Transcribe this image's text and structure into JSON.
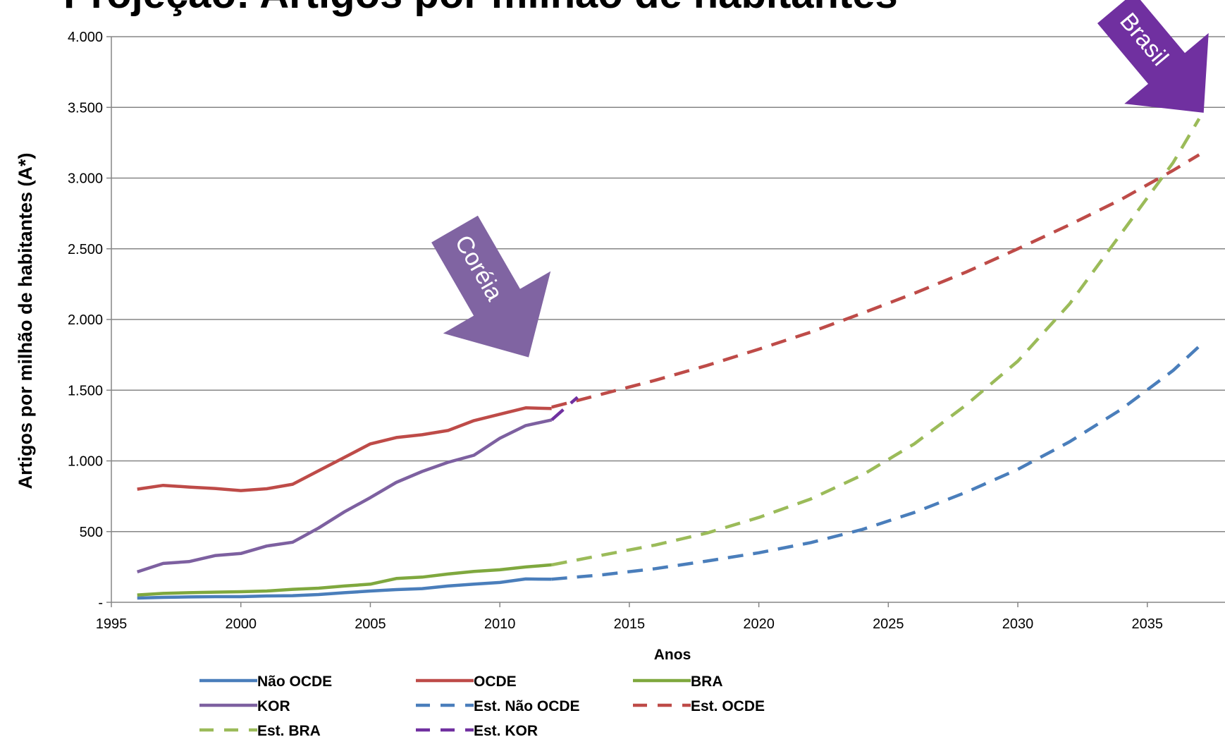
{
  "chart_data": {
    "type": "line",
    "title": "Projeção: Artigos por milhão de habitantes",
    "xlabel": "Anos",
    "ylabel": "Artigos por milhão de habitantes (A*)",
    "xlim": [
      1995,
      2038
    ],
    "ylim": [
      0,
      4000
    ],
    "x_ticks": [
      1995,
      2000,
      2005,
      2010,
      2015,
      2020,
      2025,
      2030,
      2035
    ],
    "x_tick_labels": [
      "1995",
      "2000",
      "2005",
      "2010",
      "2015",
      "2020",
      "2025",
      "2030",
      "2035"
    ],
    "y_ticks": [
      0,
      500,
      1000,
      1500,
      2000,
      2500,
      3000,
      3500,
      4000
    ],
    "y_tick_labels": [
      "-",
      "500",
      "1.000",
      "1.500",
      "2.000",
      "2.500",
      "3.000",
      "3.500",
      "4.000"
    ],
    "grid": "horizontal",
    "legend_position": "bottom",
    "series": [
      {
        "name": "Não OCDE",
        "color": "#4a7ebb",
        "style": "solid",
        "x": [
          1996,
          1997,
          1998,
          1999,
          2000,
          2001,
          2002,
          2003,
          2004,
          2005,
          2006,
          2007,
          2008,
          2009,
          2010,
          2011,
          2012
        ],
        "y": [
          30,
          35,
          38,
          40,
          40,
          45,
          47,
          55,
          68,
          80,
          90,
          97,
          115,
          128,
          140,
          165,
          163
        ]
      },
      {
        "name": "OCDE",
        "color": "#be4b48",
        "style": "solid",
        "x": [
          1996,
          1997,
          1998,
          1999,
          2000,
          2001,
          2002,
          2003,
          2004,
          2005,
          2006,
          2007,
          2008,
          2009,
          2010,
          2011,
          2012
        ],
        "y": [
          800,
          827,
          815,
          805,
          790,
          803,
          835,
          930,
          1025,
          1120,
          1165,
          1185,
          1215,
          1285,
          1330,
          1375,
          1370
        ]
      },
      {
        "name": "BRA",
        "color": "#7fa83e",
        "style": "solid",
        "x": [
          1996,
          1997,
          1998,
          1999,
          2000,
          2001,
          2002,
          2003,
          2004,
          2005,
          2006,
          2007,
          2008,
          2009,
          2010,
          2011,
          2012
        ],
        "y": [
          52,
          63,
          68,
          72,
          75,
          80,
          92,
          100,
          115,
          128,
          168,
          178,
          200,
          218,
          230,
          250,
          265
        ]
      },
      {
        "name": "KOR",
        "color": "#7d60a0",
        "style": "solid",
        "x": [
          1996,
          1997,
          1998,
          1999,
          2000,
          2001,
          2002,
          2003,
          2004,
          2005,
          2006,
          2007,
          2008,
          2009,
          2010,
          2011,
          2012
        ],
        "y": [
          215,
          275,
          288,
          330,
          345,
          398,
          425,
          525,
          640,
          740,
          848,
          925,
          990,
          1040,
          1160,
          1250,
          1290
        ]
      },
      {
        "name": "Est. Não OCDE",
        "color": "#4a7ebb",
        "style": "dashed",
        "x": [
          2012,
          2014,
          2016,
          2018,
          2020,
          2022,
          2024,
          2026,
          2028,
          2030,
          2032,
          2034,
          2036,
          2037
        ],
        "y": [
          163,
          195,
          238,
          292,
          350,
          422,
          515,
          635,
          778,
          940,
          1135,
          1365,
          1640,
          1810
        ]
      },
      {
        "name": "Est. OCDE",
        "color": "#be4b48",
        "style": "dashed",
        "x": [
          2012,
          2014,
          2016,
          2018,
          2020,
          2022,
          2024,
          2026,
          2028,
          2030,
          2032,
          2034,
          2036,
          2037
        ],
        "y": [
          1380,
          1475,
          1570,
          1675,
          1790,
          1910,
          2045,
          2185,
          2335,
          2500,
          2670,
          2850,
          3055,
          3165
        ]
      },
      {
        "name": "Est. BRA",
        "color": "#9bbb59",
        "style": "dashed",
        "x": [
          2012,
          2014,
          2016,
          2018,
          2020,
          2022,
          2024,
          2026,
          2028,
          2030,
          2032,
          2034,
          2036,
          2037
        ],
        "y": [
          265,
          335,
          405,
          490,
          600,
          730,
          900,
          1120,
          1395,
          1705,
          2110,
          2610,
          3110,
          3420
        ]
      },
      {
        "name": "Est. KOR",
        "color": "#7030a0",
        "style": "dashed",
        "x": [
          2012,
          2012.5,
          2013
        ],
        "y": [
          1290,
          1370,
          1450
        ]
      }
    ],
    "annotations": [
      {
        "text": "Coréia",
        "color": "#8064a2",
        "points_to": [
          2012,
          1420
        ]
      },
      {
        "text": "Brasil",
        "color": "#7030a0",
        "points_to": [
          2037,
          3380
        ]
      }
    ]
  }
}
